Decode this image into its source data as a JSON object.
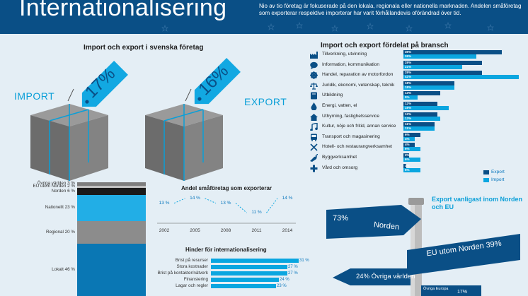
{
  "header": {
    "title": "Internationalisering",
    "description": "Nio av tio företag är fokuserade på den lokala, regionala eller nationella marknaden. Andelen småföretag som exporterar respektive importerar har varit förhållandevis oförändrad över tid."
  },
  "colors": {
    "header_bg": "#0a4f86",
    "export": "#0a4f86",
    "import": "#0aa6e0",
    "accent_text": "#0a9fd8"
  },
  "chart_data": [
    {
      "type": "bar",
      "title": "Import och export i svenska företag",
      "categories": [
        "IMPORT",
        "EXPORT"
      ],
      "values": [
        17,
        16
      ],
      "value_labels": [
        "17%",
        "16%"
      ],
      "unit": "%"
    },
    {
      "type": "bar",
      "title": "Import och export fördelat på bransch",
      "categories": [
        "Tillverkning, utvinning",
        "Information, kommunikation",
        "Handel, reparation av motorfordon",
        "Juridik, ekonomi, vetenskap, teknik",
        "Utbildning",
        "Energi, vatten, el",
        "Uthyrning, fastighetsservice",
        "Kultur, nöje och fritid, annan service",
        "Transport och magasinering",
        "Hotell- och restaurangverksamhet",
        "Byggverksamhet",
        "Vård och omsorg"
      ],
      "icons": [
        "factory-icon",
        "chat-bubble-icon",
        "cog-icon",
        "scales-icon",
        "book-icon",
        "drop-icon",
        "house-icon",
        "music-note-icon",
        "bus-icon",
        "cutlery-icon",
        "trowel-icon",
        "cross-icon"
      ],
      "series": [
        {
          "name": "Export",
          "values": [
            35,
            28,
            28,
            18,
            13,
            12,
            12,
            11,
            6,
            4,
            2,
            1
          ]
        },
        {
          "name": "Import",
          "values": [
            26,
            21,
            41,
            18,
            5,
            16,
            13,
            11,
            4,
            6,
            6,
            6
          ]
        }
      ],
      "value_labels": {
        "Export": [
          "35%",
          "28%",
          "28%",
          "18%",
          "13%",
          "12%",
          "12%",
          "11%",
          "6%",
          "4%",
          "2%",
          "1%"
        ],
        "Import": [
          "26%",
          "21%",
          "41%",
          "18%",
          "5%",
          "16%",
          "13%",
          "11%",
          "4%",
          "6%",
          "6%",
          "6%"
        ]
      },
      "legend_position": "bottom-right",
      "xlim": [
        0,
        41
      ]
    },
    {
      "type": "bar",
      "stacked": true,
      "categories": [
        "Lokalt",
        "Regional",
        "Nationellt",
        "Norden",
        "EU utom Norden",
        "Övriga världen"
      ],
      "labels": [
        "Lokalt 46 %",
        "Regional 20 %",
        "Nationellt 23 %",
        "Norden 6 %",
        "EU utom Norden 2 %",
        "Övriga världen 3 %"
      ],
      "values": [
        46,
        20,
        23,
        6,
        2,
        3
      ],
      "colors": [
        "#0a77b4",
        "#8c8c8c",
        "#22aee6",
        "#1a1a1a",
        "#c2c2c2",
        "#7d7d7d"
      ],
      "unit": "%"
    },
    {
      "type": "line",
      "title": "Andel småföretag som exporterar",
      "x": [
        "2002",
        "2005",
        "2008",
        "2011",
        "2014"
      ],
      "values": [
        13,
        14,
        13,
        11,
        14
      ],
      "value_labels": [
        "13 %",
        "14 %",
        "13 %",
        "11 %",
        "14 %"
      ],
      "ylim": [
        10,
        15
      ]
    },
    {
      "type": "bar",
      "title": "Hinder för internationalisering",
      "categories": [
        "Brist på resurser",
        "Stora kostnader",
        "Brist på kontakter/nätverk",
        "Finansiering",
        "Lagar och regler"
      ],
      "values": [
        31,
        27,
        27,
        24,
        23
      ],
      "value_labels": [
        "31 %",
        "27 %",
        "27 %",
        "24 %",
        "23 %"
      ],
      "xlim": [
        0,
        31
      ]
    }
  ],
  "signpost": {
    "callout": "Export vanligast inom Norden och EU",
    "norden_share": "73%",
    "norden_label": "Norden",
    "eu_label": "EU utom Norden 39%",
    "world_label": "24% Övriga världen",
    "europe_label": "Övriga Europa",
    "europe_share": "17%"
  }
}
